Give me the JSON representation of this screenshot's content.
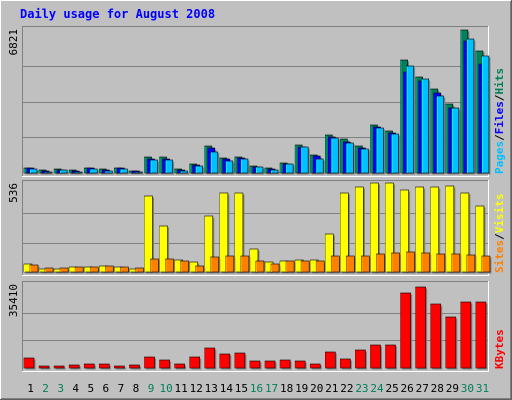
{
  "title": "Daily usage for August 2008",
  "colors": {
    "background": "#c0c0c0",
    "title": "#0000ff",
    "hits": "#00805c",
    "files": "#0000ff",
    "pages": "#00c0ff",
    "visits": "#ffff00",
    "sites": "#ff8000",
    "kbytes": "#ff0000",
    "weekday_label": "#000000",
    "weekend_label": "#00805c"
  },
  "chart_data": [
    {
      "type": "bar",
      "name": "hits-files-pages",
      "categories": [
        "1",
        "2",
        "3",
        "4",
        "5",
        "6",
        "7",
        "8",
        "9",
        "10",
        "11",
        "12",
        "13",
        "14",
        "15",
        "16",
        "17",
        "18",
        "19",
        "20",
        "21",
        "22",
        "23",
        "24",
        "25",
        "26",
        "27",
        "28",
        "29",
        "30",
        "31"
      ],
      "weekend_days": [
        "2",
        "3",
        "9",
        "10",
        "16",
        "17",
        "23",
        "24",
        "30",
        "31"
      ],
      "ymax_label": "6821",
      "ylim": [
        0,
        6821
      ],
      "legend": [
        "Pages",
        "/",
        "Files",
        "/",
        "Hits"
      ],
      "series": [
        {
          "name": "Hits",
          "values": [
            250,
            120,
            180,
            150,
            250,
            170,
            250,
            100,
            750,
            750,
            170,
            450,
            1300,
            700,
            750,
            350,
            250,
            500,
            1350,
            850,
            1800,
            1600,
            1300,
            2300,
            2000,
            5400,
            4600,
            4000,
            3300,
            6800,
            5800
          ]
        },
        {
          "name": "Files",
          "values": [
            220,
            80,
            160,
            100,
            230,
            150,
            230,
            80,
            650,
            650,
            150,
            400,
            1200,
            650,
            700,
            300,
            200,
            450,
            1250,
            800,
            1700,
            1500,
            1200,
            2200,
            1900,
            4800,
            4400,
            3800,
            3100,
            6300,
            5200
          ]
        },
        {
          "name": "Pages",
          "values": [
            200,
            50,
            130,
            60,
            200,
            100,
            200,
            60,
            620,
            600,
            100,
            350,
            1000,
            580,
            680,
            280,
            130,
            420,
            1250,
            670,
            1650,
            1450,
            1150,
            2150,
            1850,
            5100,
            4500,
            3650,
            3100,
            6400,
            5600
          ]
        }
      ]
    },
    {
      "type": "bar",
      "name": "visits-sites",
      "categories": [
        "1",
        "2",
        "3",
        "4",
        "5",
        "6",
        "7",
        "8",
        "9",
        "10",
        "11",
        "12",
        "13",
        "14",
        "15",
        "16",
        "17",
        "18",
        "19",
        "20",
        "21",
        "22",
        "23",
        "24",
        "25",
        "26",
        "27",
        "28",
        "29",
        "30",
        "31"
      ],
      "ymax_label": "536",
      "ylim": [
        0,
        536
      ],
      "legend": [
        "Sites",
        "/",
        "Visits"
      ],
      "series": [
        {
          "name": "Visits",
          "values": [
            50,
            20,
            20,
            28,
            30,
            35,
            30,
            20,
            460,
            280,
            75,
            60,
            340,
            480,
            480,
            140,
            60,
            65,
            75,
            75,
            230,
            480,
            520,
            540,
            540,
            500,
            520,
            520,
            525,
            480,
            400
          ]
        },
        {
          "name": "Sites",
          "values": [
            40,
            25,
            25,
            32,
            33,
            35,
            30,
            22,
            80,
            80,
            70,
            35,
            90,
            95,
            95,
            70,
            50,
            65,
            70,
            65,
            95,
            100,
            100,
            110,
            115,
            120,
            115,
            110,
            110,
            105,
            95
          ]
        }
      ]
    },
    {
      "type": "bar",
      "name": "kbytes",
      "categories": [
        "1",
        "2",
        "3",
        "4",
        "5",
        "6",
        "7",
        "8",
        "9",
        "10",
        "11",
        "12",
        "13",
        "14",
        "15",
        "16",
        "17",
        "18",
        "19",
        "20",
        "21",
        "22",
        "23",
        "24",
        "25",
        "26",
        "27",
        "28",
        "29",
        "30",
        "31"
      ],
      "ymax_label": "35410",
      "ylim": [
        0,
        35410
      ],
      "legend": [
        "KBytes"
      ],
      "series": [
        {
          "name": "KBytes",
          "values": [
            4200,
            1000,
            1000,
            1300,
            1800,
            1500,
            1000,
            1200,
            4500,
            3500,
            1500,
            4500,
            8500,
            5800,
            6200,
            3000,
            2800,
            3300,
            3000,
            1800,
            7000,
            3800,
            7500,
            10000,
            9700,
            32000,
            34500,
            27500,
            21600,
            28000,
            28000
          ]
        }
      ]
    }
  ]
}
